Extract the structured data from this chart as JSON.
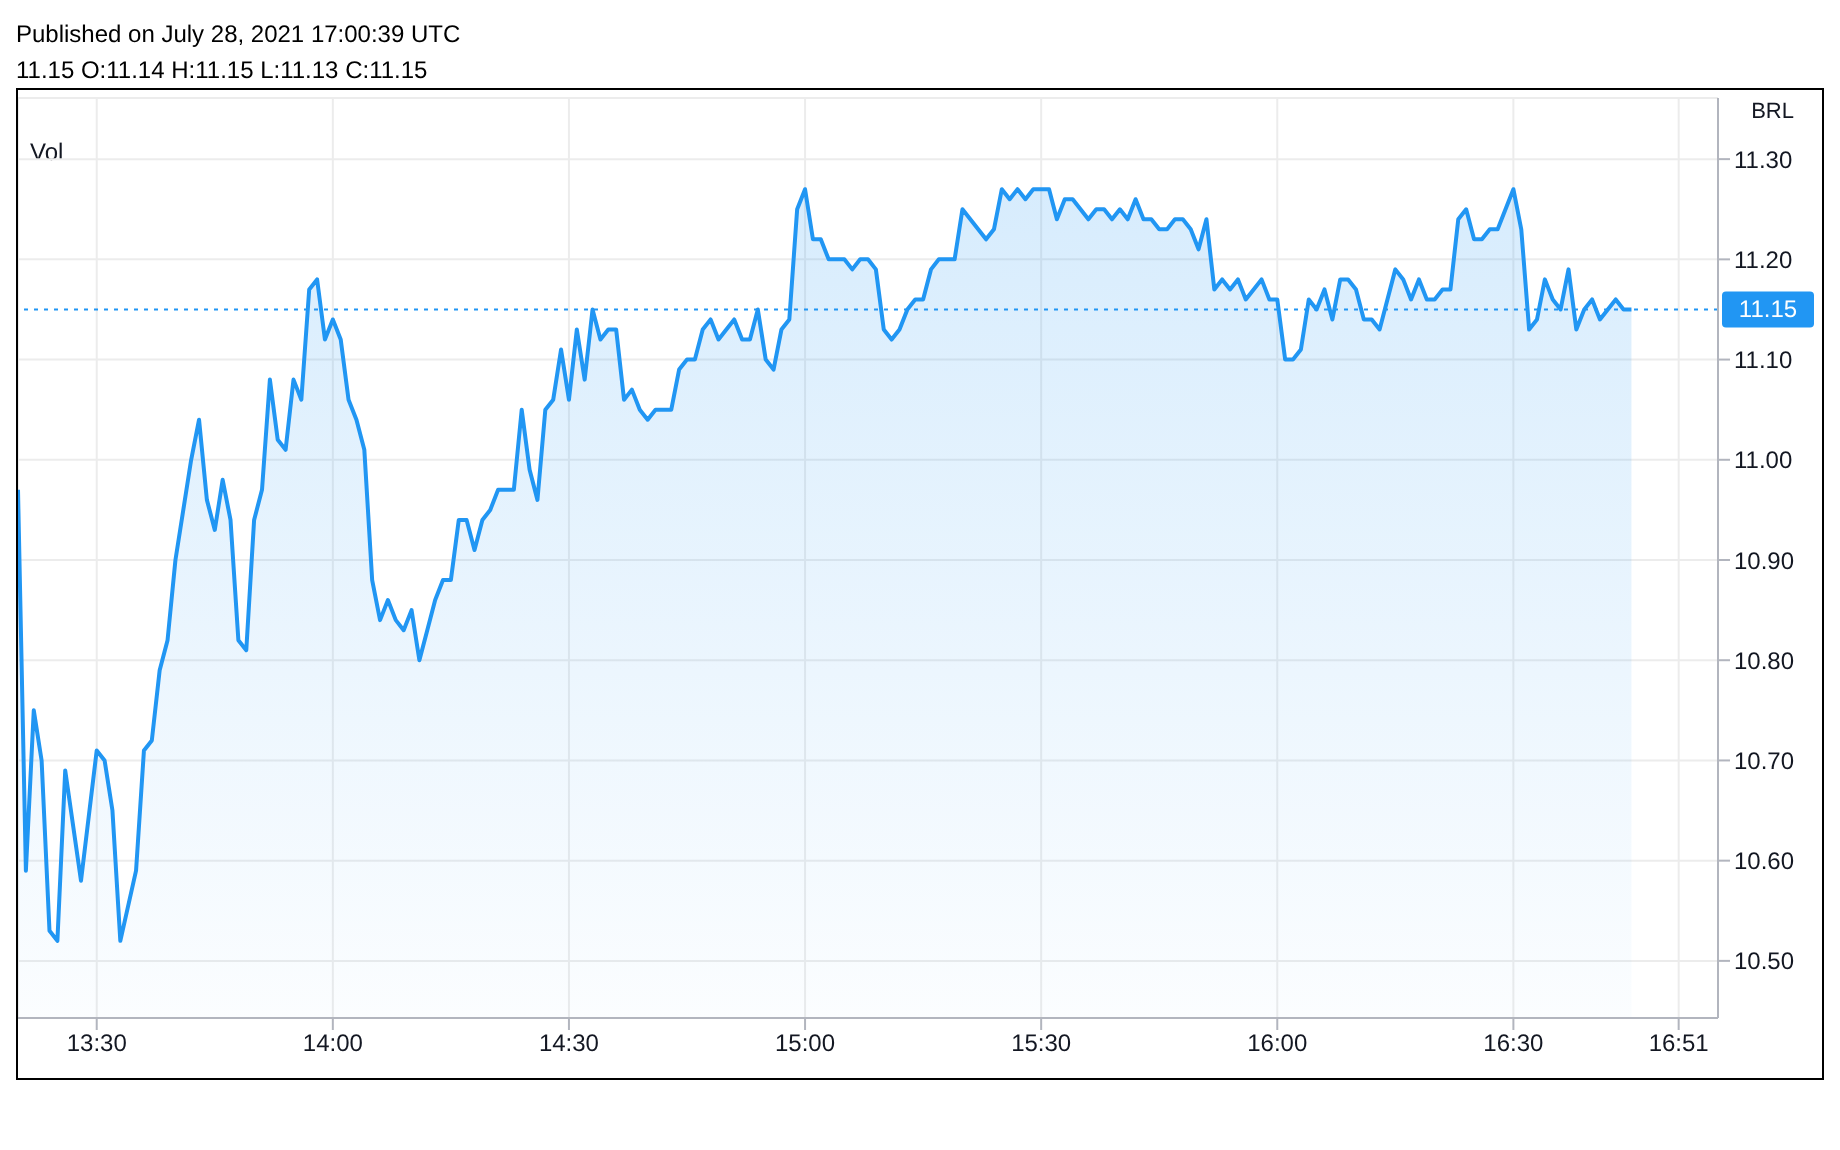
{
  "chart_data": {
    "type": "area",
    "ylabel": "BRL",
    "annotations": [
      "Published on July 28, 2021 17:00:39 UTC",
      "11.15 O:11.14 H:11.15 L:11.13 C:11.15",
      "Vol"
    ],
    "x": [
      13.3333,
      13.35,
      13.3667,
      13.3833,
      13.4,
      13.4167,
      13.4333,
      13.4667,
      13.5,
      13.5167,
      13.5333,
      13.55,
      13.5833,
      13.6,
      13.6167,
      13.6333,
      13.65,
      13.6667,
      13.7,
      13.7167,
      13.7333,
      13.75,
      13.7667,
      13.7833,
      13.8,
      13.8167,
      13.8333,
      13.85,
      13.8667,
      13.8833,
      13.9,
      13.9167,
      13.9333,
      13.95,
      13.9667,
      13.9833,
      14,
      14.0167,
      14.0333,
      14.05,
      14.0667,
      14.0833,
      14.1,
      14.1167,
      14.1333,
      14.15,
      14.1667,
      14.1833,
      14.2,
      14.2167,
      14.2333,
      14.25,
      14.2667,
      14.2833,
      14.3,
      14.3167,
      14.3333,
      14.35,
      14.3833,
      14.4,
      14.4167,
      14.4333,
      14.45,
      14.4667,
      14.4833,
      14.5,
      14.5167,
      14.5333,
      14.55,
      14.5667,
      14.5833,
      14.6,
      14.6167,
      14.6333,
      14.65,
      14.6667,
      14.6833,
      14.7167,
      14.7333,
      14.75,
      14.7667,
      14.7833,
      14.8,
      14.8167,
      14.85,
      14.8667,
      14.8833,
      14.9,
      14.9167,
      14.9333,
      14.95,
      14.9667,
      14.9833,
      15,
      15.0167,
      15.0333,
      15.05,
      15.0833,
      15.1,
      15.1167,
      15.1333,
      15.15,
      15.1667,
      15.1833,
      15.2,
      15.2167,
      15.2333,
      15.25,
      15.2667,
      15.2833,
      15.3167,
      15.3333,
      15.3833,
      15.4,
      15.4167,
      15.4333,
      15.45,
      15.4667,
      15.4833,
      15.5167,
      15.5333,
      15.55,
      15.5667,
      15.6,
      15.6167,
      15.6333,
      15.65,
      15.6667,
      15.6833,
      15.7,
      15.7167,
      15.7333,
      15.75,
      15.7667,
      15.7833,
      15.8,
      15.8167,
      15.8333,
      15.85,
      15.8667,
      15.8833,
      15.9,
      15.9167,
      15.9333,
      15.9667,
      15.9833,
      16,
      16.0167,
      16.0333,
      16.05,
      16.0667,
      16.0833,
      16.1,
      16.1167,
      16.1333,
      16.15,
      16.1667,
      16.1833,
      16.2,
      16.2167,
      16.25,
      16.2667,
      16.2833,
      16.3,
      16.3167,
      16.3333,
      16.35,
      16.3667,
      16.3833,
      16.4,
      16.4167,
      16.4333,
      16.45,
      16.4667,
      16.5,
      16.5167,
      16.5333,
      16.55,
      16.5667,
      16.5833,
      16.6,
      16.6167,
      16.6333,
      16.65,
      16.6667,
      16.6833,
      16.7167,
      16.7333,
      16.75
    ],
    "series": [
      {
        "color": "#2196f3",
        "values": [
          10.97,
          10.59,
          10.75,
          10.7,
          10.53,
          10.52,
          10.69,
          10.58,
          10.71,
          10.7,
          10.65,
          10.52,
          10.59,
          10.71,
          10.72,
          10.79,
          10.82,
          10.9,
          11.0,
          11.04,
          10.96,
          10.93,
          10.98,
          10.94,
          10.82,
          10.81,
          10.94,
          10.97,
          11.08,
          11.02,
          11.01,
          11.08,
          11.06,
          11.17,
          11.18,
          11.12,
          11.14,
          11.12,
          11.06,
          11.04,
          11.01,
          10.88,
          10.84,
          10.86,
          10.84,
          10.83,
          10.85,
          10.8,
          10.83,
          10.86,
          10.88,
          10.88,
          10.94,
          10.94,
          10.91,
          10.94,
          10.95,
          10.97,
          10.97,
          11.05,
          10.99,
          10.96,
          11.05,
          11.06,
          11.11,
          11.06,
          11.13,
          11.08,
          11.15,
          11.12,
          11.13,
          11.13,
          11.06,
          11.07,
          11.05,
          11.04,
          11.05,
          11.05,
          11.09,
          11.1,
          11.1,
          11.13,
          11.14,
          11.12,
          11.14,
          11.12,
          11.12,
          11.15,
          11.1,
          11.09,
          11.13,
          11.14,
          11.25,
          11.27,
          11.22,
          11.22,
          11.2,
          11.2,
          11.19,
          11.2,
          11.2,
          11.19,
          11.13,
          11.12,
          11.13,
          11.15,
          11.16,
          11.16,
          11.19,
          11.2,
          11.2,
          11.25,
          11.22,
          11.23,
          11.27,
          11.26,
          11.27,
          11.26,
          11.27,
          11.27,
          11.24,
          11.26,
          11.26,
          11.24,
          11.25,
          11.25,
          11.24,
          11.25,
          11.24,
          11.26,
          11.24,
          11.24,
          11.23,
          11.23,
          11.24,
          11.24,
          11.23,
          11.21,
          11.24,
          11.17,
          11.18,
          11.17,
          11.18,
          11.16,
          11.18,
          11.16,
          11.16,
          11.1,
          11.1,
          11.11,
          11.16,
          11.15,
          11.17,
          11.14,
          11.18,
          11.18,
          11.17,
          11.14,
          11.14,
          11.13,
          11.19,
          11.18,
          11.16,
          11.18,
          11.16,
          11.16,
          11.17,
          11.17,
          11.24,
          11.25,
          11.22,
          11.22,
          11.23,
          11.23,
          11.27,
          11.23,
          11.13,
          11.14,
          11.18,
          11.16,
          11.15,
          11.19,
          11.13,
          11.15,
          11.16,
          11.14,
          11.16,
          11.15,
          11.15
        ]
      }
    ],
    "xlim": [
      13.3333,
      16.9333
    ],
    "xticks": [
      {
        "value": 13.5,
        "label": "13:30"
      },
      {
        "value": 14,
        "label": "14:00"
      },
      {
        "value": 14.5,
        "label": "14:30"
      },
      {
        "value": 15,
        "label": "15:00"
      },
      {
        "value": 15.5,
        "label": "15:30"
      },
      {
        "value": 16,
        "label": "16:00"
      },
      {
        "value": 16.5,
        "label": "16:30"
      },
      {
        "value": 16.85,
        "label": "16:51"
      }
    ],
    "ylim": [
      10.443,
      11.361
    ],
    "yticks": [
      {
        "value": 10.5,
        "label": "10.50"
      },
      {
        "value": 10.6,
        "label": "10.60"
      },
      {
        "value": 10.7,
        "label": "10.70"
      },
      {
        "value": 10.8,
        "label": "10.80"
      },
      {
        "value": 10.9,
        "label": "10.90"
      },
      {
        "value": 11,
        "label": "11.00"
      },
      {
        "value": 11.1,
        "label": "11.10"
      },
      {
        "value": 11.2,
        "label": "11.20"
      },
      {
        "value": 11.3,
        "label": "11.30"
      }
    ],
    "ref_lines": [
      {
        "axis": "y",
        "value": 11.15,
        "label": "11.15",
        "color": "#2196f3",
        "line_style": "dotted"
      }
    ],
    "grid": true
  }
}
